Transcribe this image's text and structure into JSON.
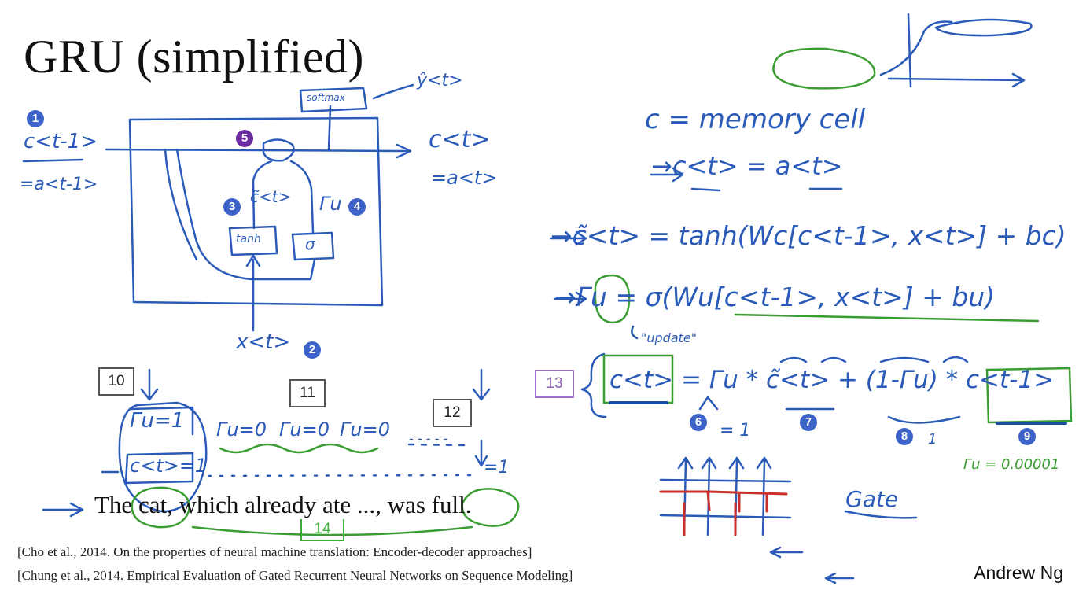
{
  "slide": {
    "title": "GRU (simplified)",
    "sentence": "The cat, which already ate ..., was full.",
    "references": [
      "[Cho et al., 2014. On the properties of neural machine translation: Encoder-decoder approaches]",
      "[Chung et al., 2014. Empirical Evaluation of Gated Recurrent Neural Networks on Sequence Modeling]"
    ],
    "author": "Andrew Ng"
  },
  "badges": {
    "b1": "1",
    "b2": "2",
    "b3": "3",
    "b4": "4",
    "b5": "5",
    "b6": "6",
    "b7": "7",
    "b8": "8",
    "b9": "9"
  },
  "boxes": {
    "b10": "10",
    "b11": "11",
    "b12": "12",
    "b13": "13",
    "b14": "14"
  },
  "annotations": {
    "memory_cell": "c = memory cell",
    "eq_c_a": "→c<t> = a<t>",
    "eq_candidate": "→c̃<t> = tanh(Wc[c<t-1>, x<t>] + bc)",
    "eq_gate": "→Γu = σ(Wu[c<t-1>, x<t>] + bu)",
    "update": "\"update\"",
    "eq_memory": "c<t> = Γu * c̃<t> + (1-Γu) * c<t-1>",
    "gate_val_1": "= 1",
    "gate_small": "Γu = 0.00001",
    "gate": "Gate",
    "softmax": "softmax",
    "yhat": "ŷ<t>",
    "tanh": "tanh",
    "sigma": "σ",
    "c_prev": "c<t-1>",
    "a_prev": "=a<t-1>",
    "c_t": "c<t>",
    "a_t": "=a<t>",
    "c_tilde": "c̃<t>",
    "gamma_u": "Γu",
    "x_t": "x<t>",
    "gu_1": "Γu=1",
    "ct_1": "c<t>=1",
    "gu_0_a": "Γu=0",
    "gu_0_b": "Γu=0",
    "gu_0_c": "Γu=0",
    "dots": "- - - - -",
    "eq1": "=1",
    "one": "1"
  },
  "colors": {
    "ink_blue": "#2b5bb8",
    "ink_green": "#3b9c31",
    "ink_red": "#c9302c",
    "badge_blue": "#3d63c9",
    "badge_purple": "#6a2aa0"
  }
}
